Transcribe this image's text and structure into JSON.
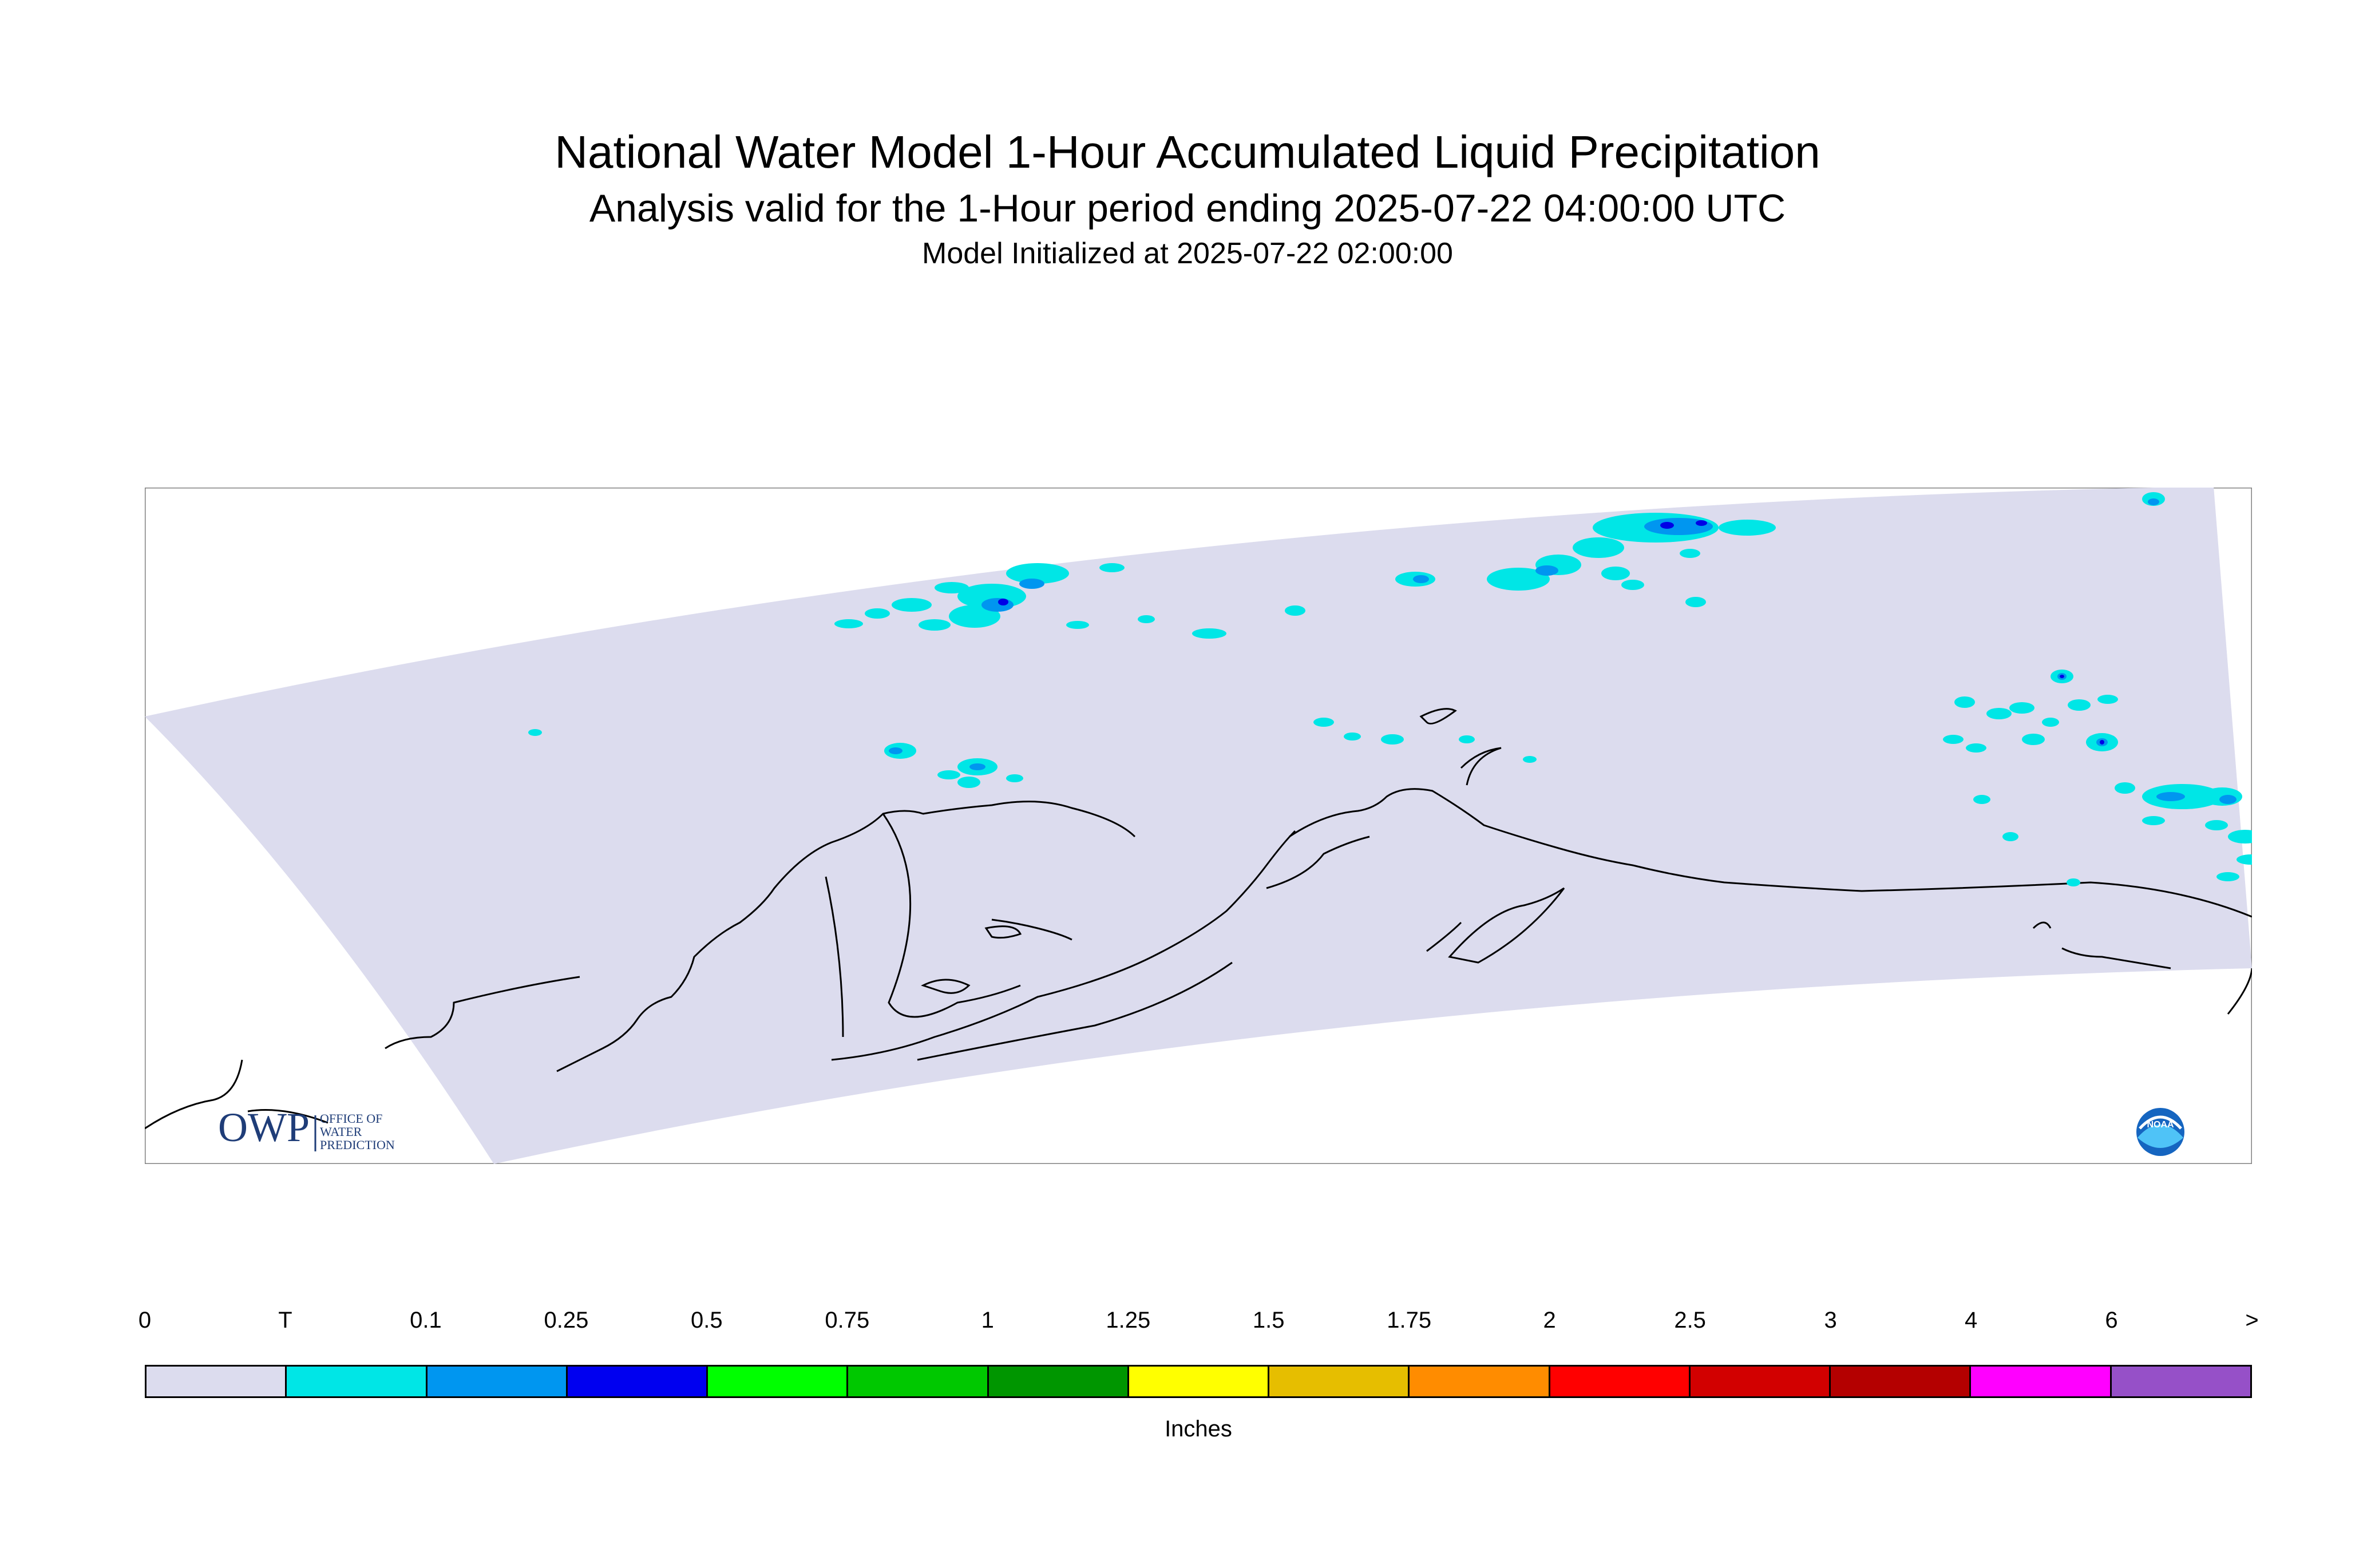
{
  "title": "National Water Model 1-Hour Accumulated Liquid Precipitation",
  "subtitle": "Analysis valid for the 1-Hour period ending 2025-07-22 04:00:00 UTC",
  "init_line": "Model Initialized at 2025-07-22 02:00:00",
  "logos": {
    "owp_mark": "OWP",
    "owp_text": [
      "OFFICE OF",
      "WATER",
      "PREDICTION"
    ],
    "noaa_text": "NOAA"
  },
  "map": {
    "domain_fill": "#dcdcee",
    "coast_color": "#000000",
    "precip_light": "#00e6e6",
    "precip_medium": "#0096f0",
    "precip_heavy": "#0000e6"
  },
  "legend": {
    "units": "Inches",
    "ticks": [
      "0",
      "T",
      "0.1",
      "0.25",
      "0.5",
      "0.75",
      "1",
      "1.25",
      "1.5",
      "1.75",
      "2",
      "2.5",
      "3",
      "4",
      "6",
      ">"
    ],
    "colors": [
      "#dcdcee",
      "#00e6e6",
      "#0096f0",
      "#0000f0",
      "#00ff00",
      "#00c800",
      "#009600",
      "#ffff00",
      "#e6be00",
      "#ff8c00",
      "#ff0000",
      "#d20000",
      "#b40000",
      "#ff00ff",
      "#9650c8"
    ]
  }
}
